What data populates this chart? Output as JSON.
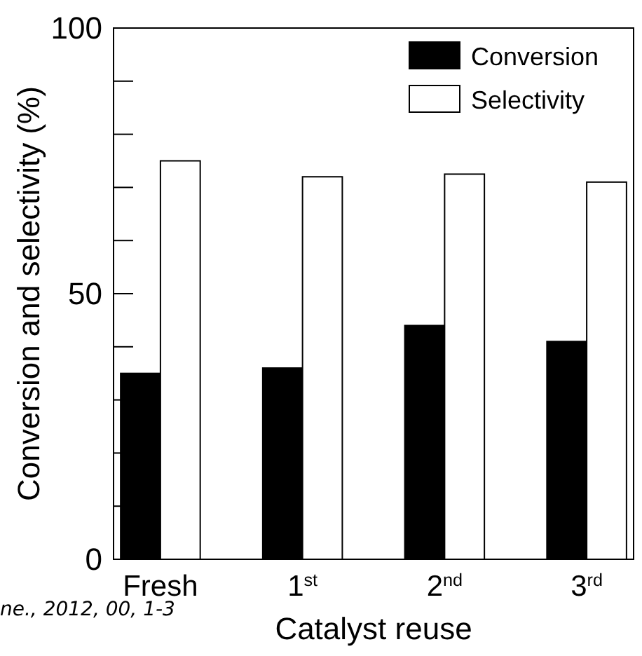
{
  "chart_data": {
    "type": "bar",
    "xlabel": "Catalyst reuse",
    "ylabel": "Conversion and selectivity (%)",
    "categories": [
      "Fresh",
      "1$^{st}$",
      "2$^{nd}$",
      "3$^{rd}$"
    ],
    "series": [
      {
        "name": "Conversion",
        "color": "#000000",
        "values": [
          35,
          36,
          44,
          41
        ]
      },
      {
        "name": "Selectivity",
        "color": "#ffffff",
        "values": [
          75,
          72,
          72.5,
          71
        ]
      }
    ],
    "ylim": [
      0,
      100
    ],
    "yticks": [
      0,
      {
        "value": 10,
        "label": null
      },
      {
        "value": 20,
        "label": null
      },
      {
        "value": 30,
        "label": null
      },
      {
        "value": 40,
        "label": null
      },
      50,
      {
        "value": 60,
        "label": null
      },
      {
        "value": 70,
        "label": null
      },
      {
        "value": 80,
        "label": null
      },
      {
        "value": 90,
        "label": null
      },
      100
    ],
    "legend": "top right",
    "annotations": [
      "ne., 2012, 00, 1-3"
    ]
  }
}
